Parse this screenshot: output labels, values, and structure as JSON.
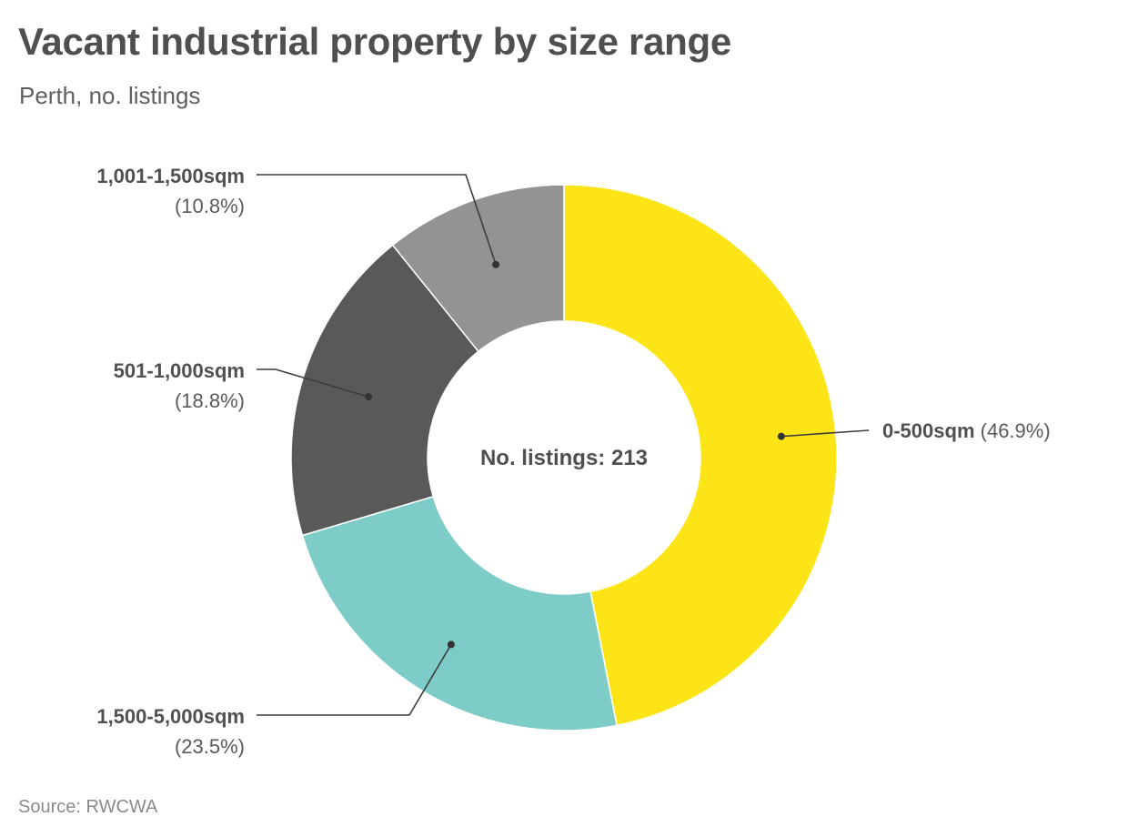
{
  "title": "Vacant industrial property by size range",
  "subtitle": "Perth, no. listings",
  "source": "Source: RWCWA",
  "chart_data": {
    "type": "pie",
    "donut": true,
    "center_label": "No. listings: 213",
    "slices": [
      {
        "name": "0-500sqm",
        "pct_label": "(46.9%)",
        "value": 46.9,
        "color": "#fce416"
      },
      {
        "name": "1,500-5,000sqm",
        "pct_label": "(23.5%)",
        "value": 23.5,
        "color": "#7dccc7"
      },
      {
        "name": "501-1,000sqm",
        "pct_label": "(18.8%)",
        "value": 18.8,
        "color": "#595959"
      },
      {
        "name": "1,001-1,500sqm",
        "pct_label": "(10.8%)",
        "value": 10.8,
        "color": "#939393"
      }
    ]
  }
}
